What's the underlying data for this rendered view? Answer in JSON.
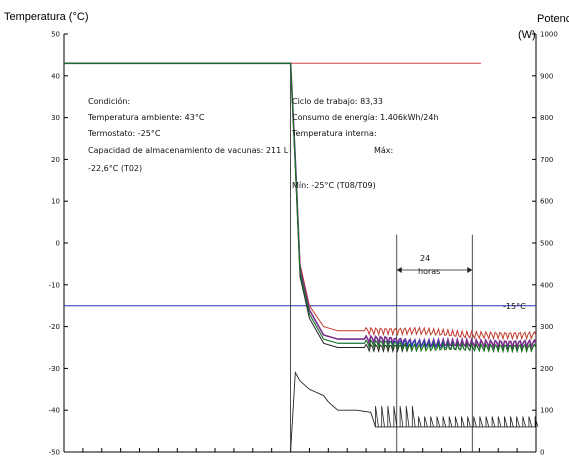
{
  "chart_data": {
    "type": "line",
    "title": "",
    "left_axis": {
      "label": "Temperatura (°C)",
      "range": [
        -50,
        50
      ],
      "ticks": [
        "50",
        "40",
        "30",
        "20",
        "10",
        "0",
        "-10",
        "-20",
        "-30",
        "-40",
        "-50"
      ]
    },
    "right_axis": {
      "label_line1": "Potencia",
      "label_line2": "(W)",
      "range": [
        0,
        1000
      ],
      "ticks": [
        "1000",
        "900",
        "800",
        "700",
        "600",
        "500",
        "400",
        "300",
        "200",
        "100",
        "0"
      ]
    },
    "time_span_hours": 100,
    "annotations": {
      "condition": "Condición:",
      "ambient": "Temperatura ambiente: 43°C",
      "thermostat": "Termostato: -25°C",
      "capacity": "Capacidad de almacenamiento de vacunas: 211 L",
      "tmin_value": "-22,6°C (T02)",
      "cycle": "Ciclo de trabajo: 83,33",
      "energy": "Consumo de energía: 1.406kWh/24h",
      "internal": "Temperatura interna:",
      "max": "Máx:",
      "min": "Mín: -25°C (T08/T09)",
      "interval_24": "24",
      "interval_hours": "horas",
      "ref_line_label": "-15°C"
    },
    "reference_line": {
      "value": -15,
      "label": "-15°C"
    },
    "series": [
      {
        "color": "#c0392b",
        "x": [
          0,
          48,
          49,
          50,
          52,
          55,
          58,
          62,
          68,
          75,
          85,
          92,
          100
        ],
        "y": [
          43,
          43,
          20,
          -5,
          -15,
          -20,
          -21,
          -21,
          -21,
          -21,
          -22,
          -22,
          -22
        ]
      },
      {
        "color": "#7b2e8e",
        "x": [
          0,
          48,
          49,
          50,
          52,
          55,
          58,
          62,
          68,
          75,
          85,
          92,
          100
        ],
        "y": [
          43,
          43,
          20,
          -6,
          -16,
          -22,
          -23,
          -23,
          -23,
          -24,
          -24,
          -24,
          -24
        ]
      },
      {
        "color": "#2040c0",
        "x": [
          0,
          48,
          49,
          50,
          52,
          55,
          58,
          62,
          68,
          75,
          85,
          92,
          100
        ],
        "y": [
          43,
          43,
          20,
          -7,
          -17,
          -23,
          -24,
          -24,
          -24,
          -24,
          -25,
          -25,
          -25
        ]
      },
      {
        "color": "#222222",
        "x": [
          0,
          48,
          49,
          50,
          52,
          55,
          58,
          62,
          68,
          75,
          85,
          92,
          100
        ],
        "y": [
          43,
          43,
          18,
          -8,
          -18,
          -24,
          -25,
          -25,
          -25,
          -25,
          -25,
          -25,
          -25
        ]
      },
      {
        "color": "#1a7a1a",
        "x": [
          0,
          48,
          49,
          50,
          52,
          55,
          58,
          62,
          68,
          75,
          85,
          92,
          100
        ],
        "y": [
          43,
          43,
          19,
          -7,
          -17,
          -23,
          -24,
          -24,
          -24,
          -25,
          -25,
          -25,
          -25
        ]
      }
    ],
    "ambient_line": {
      "value": 43,
      "color": "#d04040"
    },
    "power_series": {
      "color": "#222222",
      "x": [
        48,
        49,
        50,
        52,
        55,
        56,
        58,
        62,
        65,
        66,
        100
      ],
      "y": [
        0,
        190,
        170,
        150,
        135,
        120,
        100,
        100,
        95,
        60,
        60
      ]
    }
  }
}
